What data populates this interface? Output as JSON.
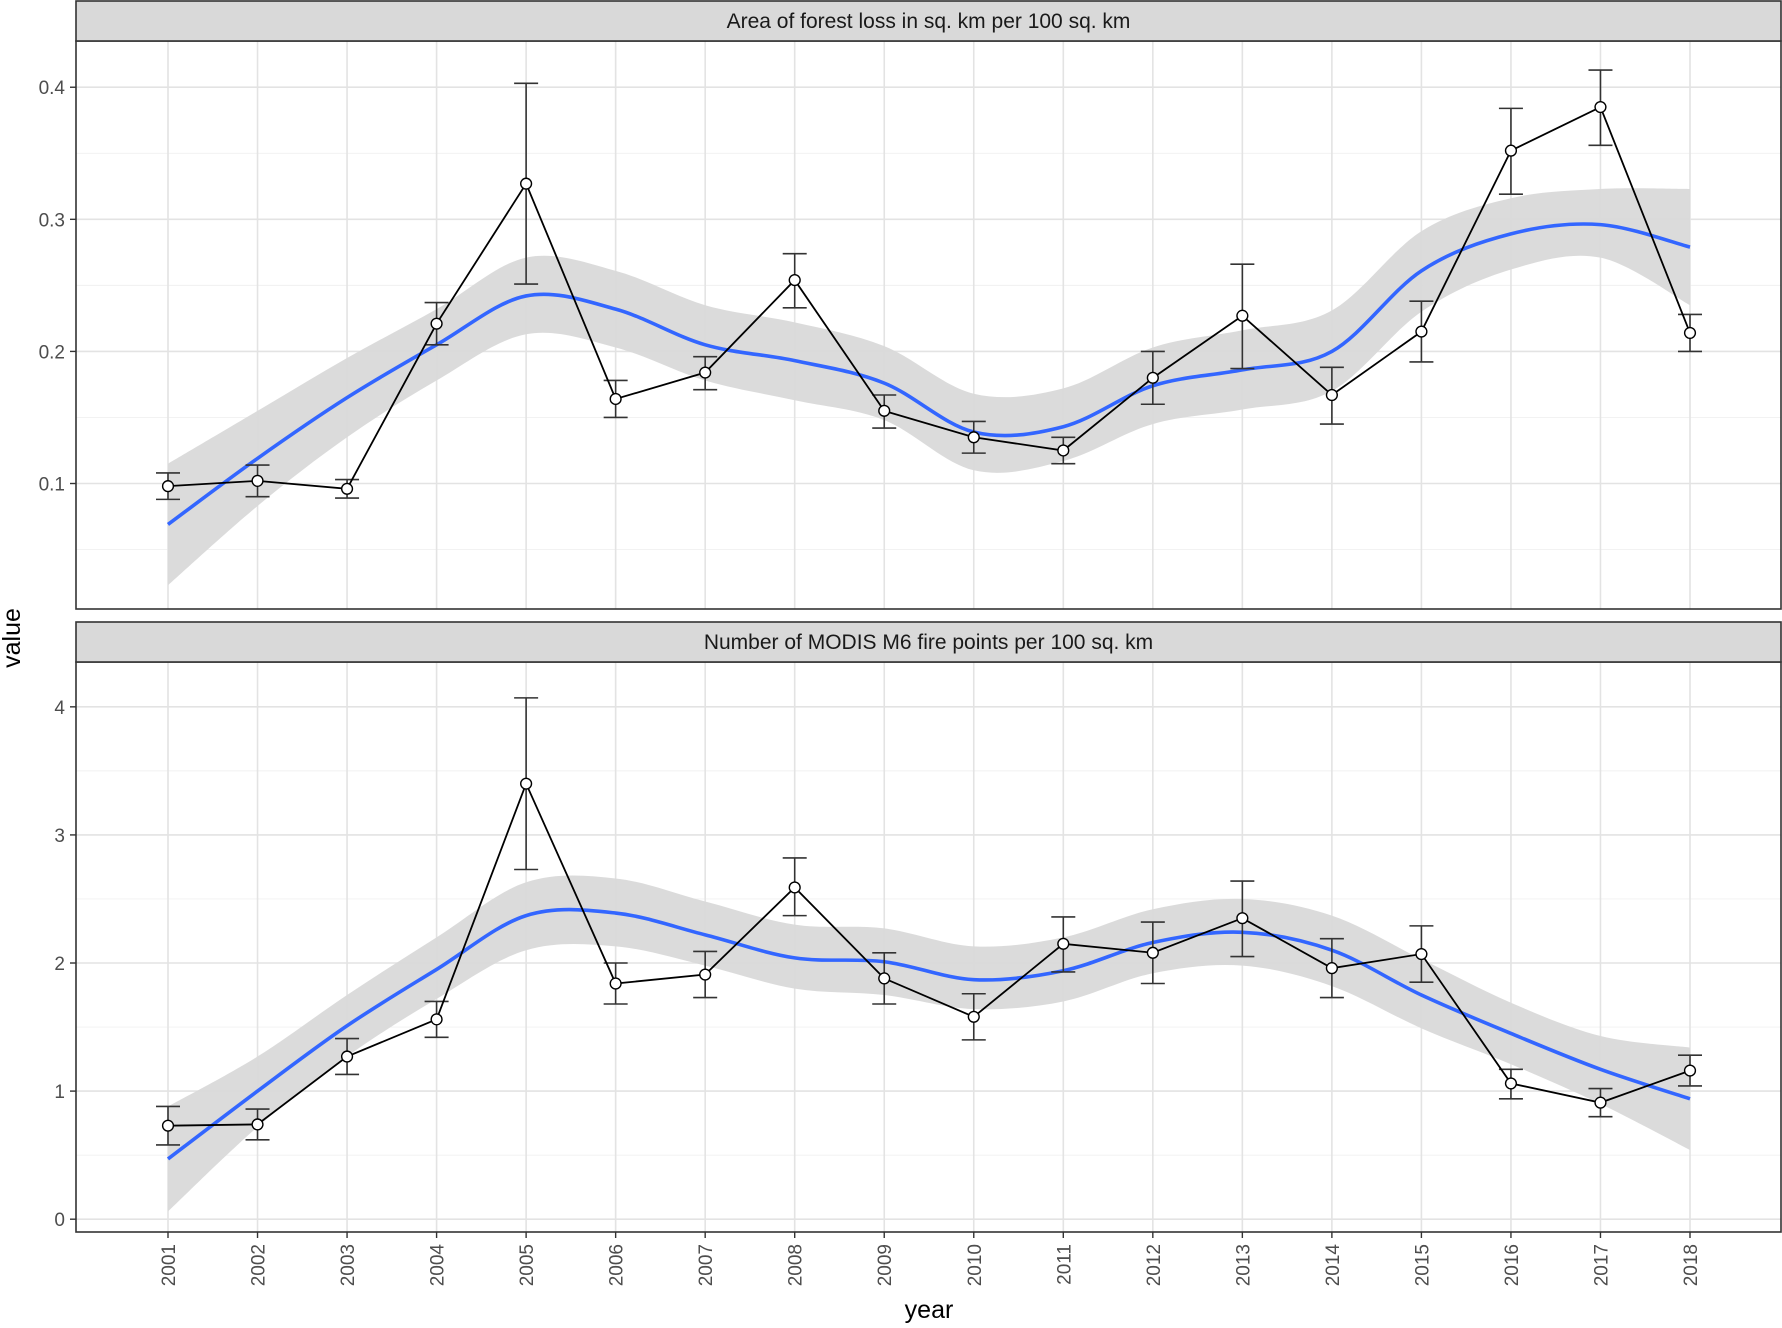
{
  "chart_data": {
    "type": "line",
    "xlabel": "year",
    "ylabel": "value",
    "x": [
      2001,
      2002,
      2003,
      2004,
      2005,
      2006,
      2007,
      2008,
      2009,
      2010,
      2011,
      2012,
      2013,
      2014,
      2015,
      2016,
      2017,
      2018
    ],
    "grid": true,
    "panels": [
      {
        "id": "forest-loss",
        "strip_label": "Area of forest loss in sq. km per 100 sq. km",
        "ylim": [
          0.005,
          0.435
        ],
        "yticks": [
          0.1,
          0.2,
          0.3,
          0.4
        ],
        "ytick_labels": [
          "0.1",
          "0.2",
          "0.3",
          "0.4"
        ],
        "values": [
          0.098,
          0.102,
          0.096,
          0.221,
          0.327,
          0.164,
          0.184,
          0.254,
          0.155,
          0.135,
          0.125,
          0.18,
          0.227,
          0.167,
          0.215,
          0.352,
          0.385,
          0.214
        ],
        "error_low": [
          0.088,
          0.09,
          0.089,
          0.205,
          0.251,
          0.15,
          0.171,
          0.233,
          0.142,
          0.123,
          0.115,
          0.16,
          0.187,
          0.145,
          0.192,
          0.319,
          0.356,
          0.2
        ],
        "error_high": [
          0.108,
          0.114,
          0.103,
          0.237,
          0.403,
          0.178,
          0.196,
          0.274,
          0.167,
          0.147,
          0.135,
          0.2,
          0.266,
          0.188,
          0.238,
          0.384,
          0.413,
          0.228
        ],
        "smooth_values": [
          0.069,
          0.119,
          0.165,
          0.205,
          0.242,
          0.232,
          0.205,
          0.193,
          0.176,
          0.139,
          0.143,
          0.174,
          0.186,
          0.2,
          0.261,
          0.289,
          0.296,
          0.279
        ],
        "band_low": [
          0.023,
          0.083,
          0.135,
          0.178,
          0.213,
          0.203,
          0.178,
          0.163,
          0.148,
          0.11,
          0.117,
          0.145,
          0.156,
          0.17,
          0.23,
          0.262,
          0.271,
          0.235
        ],
        "band_high": [
          0.115,
          0.155,
          0.195,
          0.232,
          0.271,
          0.261,
          0.235,
          0.222,
          0.204,
          0.168,
          0.172,
          0.203,
          0.216,
          0.231,
          0.291,
          0.316,
          0.323,
          0.323
        ]
      },
      {
        "id": "fire-points",
        "strip_label": "Number of MODIS M6 fire points per 100 sq. km",
        "ylim": [
          -0.1,
          4.35
        ],
        "yticks": [
          0,
          1,
          2,
          3,
          4
        ],
        "ytick_labels": [
          "0",
          "1",
          "2",
          "3",
          "4"
        ],
        "values": [
          0.73,
          0.74,
          1.27,
          1.56,
          3.4,
          1.84,
          1.91,
          2.59,
          1.88,
          1.58,
          2.15,
          2.08,
          2.35,
          1.96,
          2.07,
          1.06,
          0.91,
          1.16
        ],
        "error_low": [
          0.58,
          0.62,
          1.13,
          1.42,
          2.73,
          1.68,
          1.73,
          2.37,
          1.68,
          1.4,
          1.93,
          1.84,
          2.05,
          1.73,
          1.85,
          0.94,
          0.8,
          1.04
        ],
        "error_high": [
          0.88,
          0.86,
          1.41,
          1.7,
          4.07,
          2.0,
          2.09,
          2.82,
          2.08,
          1.76,
          2.36,
          2.32,
          2.64,
          2.19,
          2.29,
          1.17,
          1.02,
          1.28
        ],
        "smooth_values": [
          0.47,
          1.0,
          1.51,
          1.95,
          2.37,
          2.39,
          2.22,
          2.04,
          2.01,
          1.87,
          1.94,
          2.16,
          2.24,
          2.1,
          1.75,
          1.45,
          1.17,
          0.94
        ],
        "band_low": [
          0.06,
          0.72,
          1.27,
          1.72,
          2.1,
          2.13,
          1.98,
          1.8,
          1.75,
          1.64,
          1.7,
          1.92,
          1.98,
          1.82,
          1.49,
          1.21,
          0.9,
          0.54
        ],
        "band_high": [
          0.88,
          1.27,
          1.75,
          2.2,
          2.63,
          2.66,
          2.48,
          2.3,
          2.27,
          2.13,
          2.2,
          2.42,
          2.5,
          2.37,
          2.03,
          1.69,
          1.43,
          1.34
        ]
      }
    ],
    "colors": {
      "line": "#000000",
      "point_fill": "#ffffff",
      "errorbar": "#333333",
      "smooth": "#3366ff",
      "band": "#d9d9d9",
      "strip": "#d9d9d9",
      "grid": "#e3e3e3"
    }
  }
}
